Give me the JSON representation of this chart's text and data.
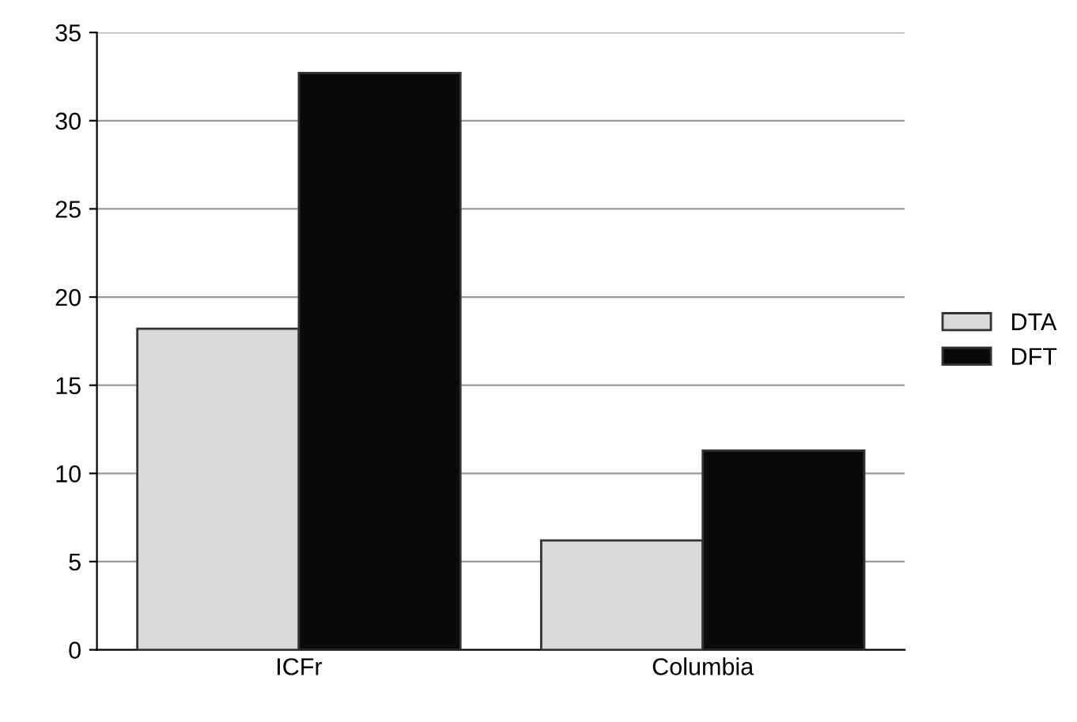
{
  "chart_data": {
    "type": "bar",
    "categories": [
      "ICFr",
      "Columbia"
    ],
    "series": [
      {
        "name": "DTA",
        "color": "#d9d9d9",
        "values": [
          18.2,
          6.2
        ]
      },
      {
        "name": "DFT",
        "color": "#0a0a0a",
        "values": [
          32.7,
          11.3
        ]
      }
    ],
    "ylim": [
      0,
      35
    ],
    "yticks": [
      0,
      5,
      10,
      15,
      20,
      25,
      30,
      35
    ],
    "grid": "y",
    "legend": "right"
  }
}
